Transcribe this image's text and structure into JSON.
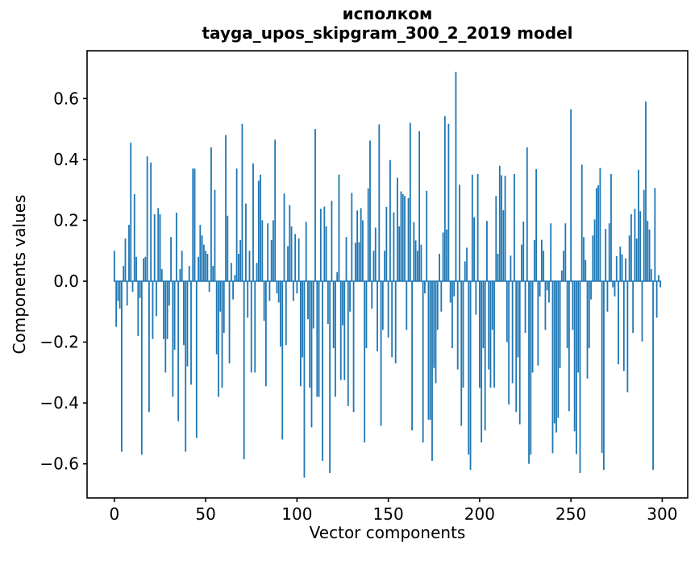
{
  "figure": {
    "title_line1": "исполком",
    "title_line2": "tayga_upos_skipgram_300_2_2019 model"
  },
  "chart_data": {
    "type": "bar",
    "title": "исполком",
    "subtitle": "tayga_upos_skipgram_300_2_2019 model",
    "xlabel": "Vector components",
    "ylabel": "Components values",
    "bar_color": "#1f77b4",
    "axis_color": "#000000",
    "grid": false,
    "legend_position": "none",
    "n_bars": 300,
    "xlim": [
      -14.95,
      313.95
    ],
    "ylim": [
      -0.712,
      0.757
    ],
    "x_tick_values": [
      0,
      50,
      100,
      150,
      200,
      250,
      300
    ],
    "x_tick_labels": [
      "0",
      "50",
      "100",
      "150",
      "200",
      "250",
      "300"
    ],
    "y_tick_values": [
      -0.6,
      -0.4,
      -0.2,
      0.0,
      0.2,
      0.4,
      0.6
    ],
    "y_tick_labels": [
      "−0.6",
      "−0.4",
      "−0.2",
      "0.0",
      "0.2",
      "0.4",
      "0.6"
    ],
    "values": [
      0.1,
      -0.15,
      -0.065,
      -0.09,
      -0.56,
      0.05,
      0.14,
      -0.08,
      0.185,
      0.455,
      -0.035,
      0.286,
      0.08,
      -0.18,
      -0.055,
      -0.57,
      0.075,
      0.08,
      0.41,
      -0.43,
      0.39,
      -0.19,
      0.22,
      -0.115,
      0.24,
      0.22,
      0.04,
      -0.19,
      -0.3,
      -0.19,
      -0.08,
      0.145,
      -0.38,
      -0.225,
      0.225,
      -0.46,
      0.04,
      0.1,
      -0.21,
      -0.56,
      -0.28,
      0.05,
      -0.34,
      0.37,
      0.37,
      -0.515,
      0.08,
      0.185,
      0.15,
      0.12,
      0.1,
      0.09,
      -0.035,
      0.44,
      0.05,
      0.3,
      -0.24,
      -0.38,
      -0.1,
      -0.35,
      -0.17,
      0.48,
      0.215,
      -0.27,
      0.06,
      -0.06,
      0.02,
      0.37,
      0.09,
      0.135,
      0.517,
      -0.585,
      0.255,
      -0.12,
      0.1,
      -0.3,
      0.387,
      -0.3,
      0.06,
      0.33,
      0.35,
      0.2,
      -0.13,
      -0.345,
      0.19,
      -0.065,
      0.135,
      0.2,
      0.465,
      -0.04,
      -0.07,
      -0.215,
      -0.52,
      0.288,
      -0.21,
      0.115,
      0.25,
      0.18,
      -0.065,
      0.155,
      -0.04,
      0.14,
      -0.345,
      -0.25,
      -0.645,
      0.195,
      -0.125,
      -0.35,
      -0.48,
      -0.155,
      0.5,
      -0.38,
      -0.38,
      0.238,
      -0.59,
      0.245,
      0.18,
      -0.14,
      -0.63,
      0.264,
      -0.22,
      -0.38,
      0.03,
      0.35,
      -0.325,
      -0.145,
      -0.325,
      0.145,
      -0.41,
      -0.1,
      0.29,
      -0.43,
      0.126,
      0.232,
      0.128,
      0.24,
      0.2,
      -0.53,
      -0.22,
      0.305,
      0.462,
      -0.09,
      0.1,
      0.176,
      -0.23,
      0.515,
      -0.475,
      -0.16,
      0.1,
      0.244,
      -0.185,
      0.398,
      -0.25,
      0.226,
      -0.27,
      0.34,
      0.18,
      0.295,
      0.286,
      0.28,
      -0.16,
      0.273,
      0.52,
      -0.49,
      0.194,
      0.134,
      0.1,
      0.493,
      0.12,
      -0.53,
      -0.04,
      0.297,
      -0.455,
      -0.455,
      -0.59,
      -0.285,
      -0.335,
      -0.16,
      0.09,
      -0.1,
      0.16,
      0.542,
      0.17,
      0.517,
      -0.07,
      -0.22,
      -0.05,
      0.688,
      -0.29,
      0.317,
      -0.475,
      -0.35,
      0.065,
      0.11,
      -0.57,
      -0.62,
      0.35,
      0.21,
      -0.11,
      0.352,
      -0.35,
      -0.53,
      -0.22,
      -0.49,
      0.198,
      -0.29,
      -0.35,
      -0.16,
      -0.35,
      0.28,
      0.09,
      0.379,
      0.348,
      0.233,
      0.346,
      -0.2,
      -0.405,
      0.084,
      -0.335,
      0.352,
      -0.43,
      -0.25,
      -0.47,
      0.12,
      0.196,
      -0.17,
      0.44,
      -0.6,
      -0.57,
      -0.3,
      0.135,
      0.368,
      -0.277,
      -0.05,
      0.136,
      0.1,
      -0.16,
      -0.03,
      -0.07,
      0.19,
      -0.565,
      -0.467,
      -0.497,
      -0.449,
      -0.286,
      0.035,
      0.1,
      0.19,
      -0.22,
      -0.427,
      0.565,
      -0.16,
      -0.493,
      -0.568,
      -0.3,
      -0.63,
      0.383,
      0.145,
      0.07,
      -0.32,
      -0.22,
      -0.06,
      0.15,
      0.203,
      0.306,
      0.315,
      0.372,
      -0.564,
      -0.62,
      0.172,
      -0.1,
      0.19,
      0.352,
      -0.02,
      -0.05,
      0.082,
      -0.273,
      0.114,
      0.088,
      -0.295,
      0.075,
      -0.365,
      0.15,
      0.22,
      -0.17,
      0.238,
      0.14,
      0.366,
      0.23,
      -0.198,
      0.3,
      0.59,
      0.198,
      0.17,
      0.04,
      -0.62,
      0.306,
      -0.12,
      0.02,
      -0.02
    ]
  }
}
